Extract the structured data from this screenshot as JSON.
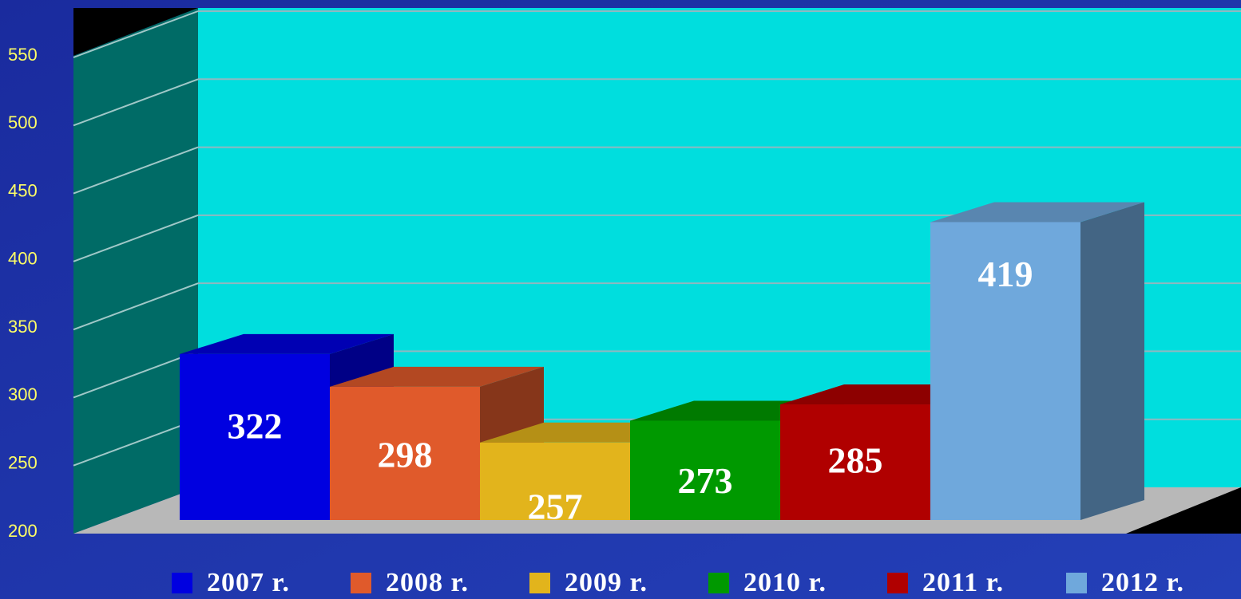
{
  "chart_data": {
    "type": "bar",
    "categories": [
      null
    ],
    "series": [
      {
        "name": "2007 r.",
        "color": "#0000e0",
        "values": [
          322
        ]
      },
      {
        "name": "2008 r.",
        "color": "#e05a2b",
        "values": [
          298
        ]
      },
      {
        "name": "2009 r.",
        "color": "#e2b41c",
        "values": [
          257
        ]
      },
      {
        "name": "2010 r.",
        "color": "#009900",
        "values": [
          273
        ]
      },
      {
        "name": "2011 r.",
        "color": "#b00000",
        "values": [
          285
        ]
      },
      {
        "name": "2012 r.",
        "color": "#6fa8dc",
        "values": [
          419
        ]
      }
    ],
    "ylim": [
      200,
      550
    ],
    "yticks": [
      200,
      250,
      300,
      350,
      400,
      450,
      500,
      550
    ],
    "grid": true,
    "legend": "bottom"
  }
}
